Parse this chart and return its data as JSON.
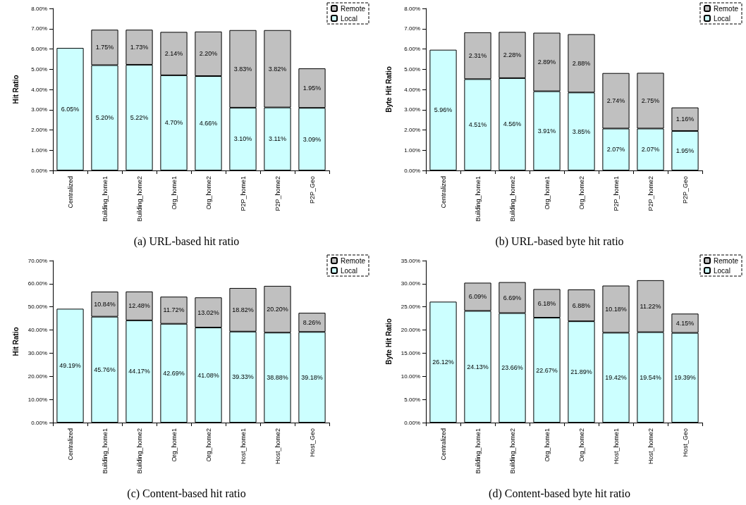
{
  "chart_data": [
    {
      "type": "bar",
      "stacked": true,
      "ylabel": "Hit Ratio",
      "categories": [
        "Centralized",
        "Building_home1",
        "Building_home2",
        "Org_home1",
        "Org_home2",
        "P2P_home1",
        "P2P_home2",
        "P2P_Geo"
      ],
      "ylim": [
        0,
        8
      ],
      "yticks": [
        {
          "value": 0,
          "label": "0.00%"
        },
        {
          "value": 1,
          "label": "1.00%"
        },
        {
          "value": 2,
          "label": "2.00%"
        },
        {
          "value": 3,
          "label": "3.00%"
        },
        {
          "value": 4,
          "label": "4.00%"
        },
        {
          "value": 5,
          "label": "5.00%"
        },
        {
          "value": 6,
          "label": "6.00%"
        },
        {
          "value": 7,
          "label": "7.00%"
        },
        {
          "value": 8,
          "label": "8.00%"
        }
      ],
      "grid": false,
      "legend": "top right",
      "annotations": [
        "(a) URL-based hit ratio"
      ],
      "series": [
        {
          "name": "Local",
          "color": "#ccffff",
          "values": [
            6.05,
            5.2,
            5.22,
            4.7,
            4.66,
            3.1,
            3.11,
            3.09
          ],
          "value_labels": [
            "6.05%",
            "5.20%",
            "5.22%",
            "4.70%",
            "4.66%",
            "3.10%",
            "3.11%",
            "3.09%"
          ]
        },
        {
          "name": "Remote",
          "color": "#c0c0c0",
          "values": [
            null,
            1.75,
            1.73,
            2.14,
            2.2,
            3.83,
            3.82,
            1.95
          ],
          "value_labels": [
            null,
            "1.75%",
            "1.73%",
            "2.14%",
            "2.20%",
            "3.83%",
            "3.82%",
            "1.95%"
          ]
        }
      ]
    },
    {
      "type": "bar",
      "stacked": true,
      "ylabel": "Byte Hit Ratio",
      "categories": [
        "Centralized",
        "Building_home1",
        "Building_home2",
        "Org_home1",
        "Org_home2",
        "P2P_home1",
        "P2P_home2",
        "P2P_Geo"
      ],
      "ylim": [
        0,
        8
      ],
      "yticks": [
        {
          "value": 0,
          "label": "0.00%"
        },
        {
          "value": 1,
          "label": "1.00%"
        },
        {
          "value": 2,
          "label": "2.00%"
        },
        {
          "value": 3,
          "label": "3.00%"
        },
        {
          "value": 4,
          "label": "4.00%"
        },
        {
          "value": 5,
          "label": "5.00%"
        },
        {
          "value": 6,
          "label": "6.00%"
        },
        {
          "value": 7,
          "label": "7.00%"
        },
        {
          "value": 8,
          "label": "8.00%"
        }
      ],
      "grid": false,
      "legend": "top right",
      "annotations": [
        "(b) URL-based byte hit ratio"
      ],
      "series": [
        {
          "name": "Local",
          "color": "#ccffff",
          "values": [
            5.96,
            4.51,
            4.56,
            3.91,
            3.85,
            2.07,
            2.07,
            1.95
          ],
          "value_labels": [
            "5.96%",
            "4.51%",
            "4.56%",
            "3.91%",
            "3.85%",
            "2.07%",
            "2.07%",
            "1.95%"
          ]
        },
        {
          "name": "Remote",
          "color": "#c0c0c0",
          "values": [
            null,
            2.31,
            2.28,
            2.89,
            2.88,
            2.74,
            2.75,
            1.16
          ],
          "value_labels": [
            null,
            "2.31%",
            "2.28%",
            "2.89%",
            "2.88%",
            "2.74%",
            "2.75%",
            "1.16%"
          ]
        }
      ]
    },
    {
      "type": "bar",
      "stacked": true,
      "ylabel": "Hit Ratio",
      "categories": [
        "Centralized",
        "Building_home1",
        "Building_home2",
        "Org_home1",
        "Org_home2",
        "Host_home1",
        "Host_home2",
        "Host_Geo"
      ],
      "ylim": [
        0,
        70
      ],
      "yticks": [
        {
          "value": 0,
          "label": "0.00%"
        },
        {
          "value": 10,
          "label": "10.00%"
        },
        {
          "value": 20,
          "label": "20.00%"
        },
        {
          "value": 30,
          "label": "30.00%"
        },
        {
          "value": 40,
          "label": "40.00%"
        },
        {
          "value": 50,
          "label": "50.00%"
        },
        {
          "value": 60,
          "label": "60.00%"
        },
        {
          "value": 70,
          "label": "70.00%"
        }
      ],
      "grid": false,
      "legend": "top right",
      "annotations": [
        "(c) Content-based hit ratio"
      ],
      "series": [
        {
          "name": "Local",
          "color": "#ccffff",
          "values": [
            49.19,
            45.76,
            44.17,
            42.69,
            41.08,
            39.33,
            38.88,
            39.18
          ],
          "value_labels": [
            "49.19%",
            "45.76%",
            "44.17%",
            "42.69%",
            "41.08%",
            "39.33%",
            "38.88%",
            "39.18%"
          ]
        },
        {
          "name": "Remote",
          "color": "#c0c0c0",
          "values": [
            null,
            10.84,
            12.48,
            11.72,
            13.02,
            18.82,
            20.2,
            8.26
          ],
          "value_labels": [
            null,
            "10.84%",
            "12.48%",
            "11.72%",
            "13.02%",
            "18.82%",
            "20.20%",
            "8.26%"
          ]
        }
      ]
    },
    {
      "type": "bar",
      "stacked": true,
      "ylabel": "Byte Hit Ratio",
      "categories": [
        "Centralized",
        "Building_home1",
        "Building_home2",
        "Org_home1",
        "Org_home2",
        "Host_home1",
        "Host_home2",
        "Host_Geo"
      ],
      "ylim": [
        0,
        35
      ],
      "yticks": [
        {
          "value": 0,
          "label": "0.00%"
        },
        {
          "value": 5,
          "label": "5.00%"
        },
        {
          "value": 10,
          "label": "10.00%"
        },
        {
          "value": 15,
          "label": "15.00%"
        },
        {
          "value": 20,
          "label": "20.00%"
        },
        {
          "value": 25,
          "label": "25.00%"
        },
        {
          "value": 30,
          "label": "30.00%"
        },
        {
          "value": 35,
          "label": "35.00%"
        }
      ],
      "grid": false,
      "legend": "top right",
      "annotations": [
        "(d) Content-based byte hit ratio"
      ],
      "series": [
        {
          "name": "Local",
          "color": "#ccffff",
          "values": [
            26.12,
            24.13,
            23.66,
            22.67,
            21.89,
            19.42,
            19.54,
            19.39
          ],
          "value_labels": [
            "26.12%",
            "24.13%",
            "23.66%",
            "22.67%",
            "21.89%",
            "19.42%",
            "19.54%",
            "19.39%"
          ]
        },
        {
          "name": "Remote",
          "color": "#c0c0c0",
          "values": [
            null,
            6.09,
            6.69,
            6.18,
            6.88,
            10.18,
            11.22,
            4.15
          ],
          "value_labels": [
            null,
            "6.09%",
            "6.69%",
            "6.18%",
            "6.88%",
            "10.18%",
            "11.22%",
            "4.15%"
          ]
        }
      ]
    }
  ]
}
